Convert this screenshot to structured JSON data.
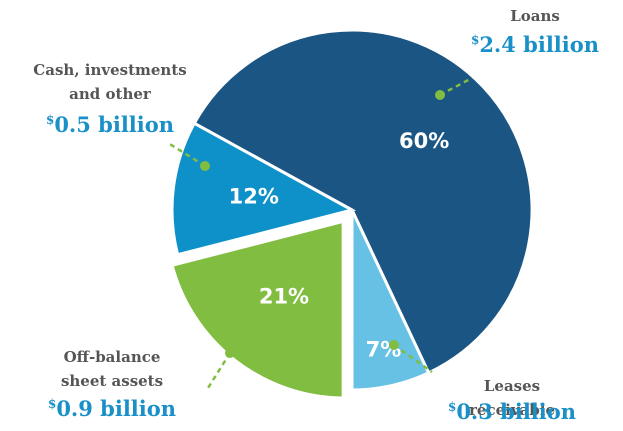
{
  "chart_data": {
    "type": "pie",
    "categories": [
      "Loans",
      "Leases receivable",
      "Off-balance\nsheet assets",
      "Cash, investments\nand other"
    ],
    "values": [
      60,
      7,
      21,
      12
    ],
    "value_labels": [
      "60%",
      "7%",
      "21%",
      "12%"
    ],
    "amount_labels": [
      "$2.4 billion",
      "$0.3 billion",
      "$0.9 billion",
      "$0.5 billion"
    ],
    "colors": [
      "#1b5583",
      "#66c1e5",
      "#80bd41",
      "#0e90c9"
    ],
    "exploded": 2
  }
}
